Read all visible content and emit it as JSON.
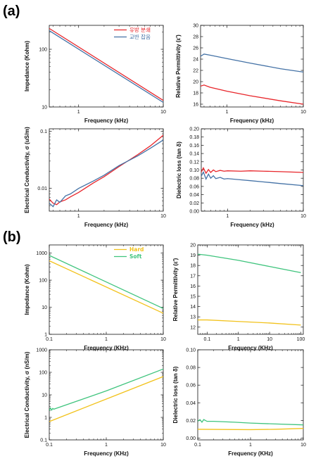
{
  "panel_labels": [
    "(a)",
    "(b)"
  ],
  "chart_data": [
    {
      "type": "line",
      "panel": "(a)",
      "xlabel": "Frequency (kHz)",
      "ylabel": "Impedance (Kohm)",
      "xscale": "log",
      "yscale": "log",
      "xlim": [
        0.45,
        10
      ],
      "ylim": [
        10,
        260
      ],
      "xticks": [
        {
          "v": 1,
          "t": "1"
        },
        {
          "v": 10,
          "t": "10"
        }
      ],
      "yticks": [
        {
          "v": 10,
          "t": "10"
        },
        {
          "v": 100,
          "t": "100"
        }
      ],
      "legend": "top-right",
      "series": [
        {
          "name": "유방 분쇄",
          "color": "#e8262b",
          "x": [
            0.45,
            10
          ],
          "y": [
            230,
            13
          ]
        },
        {
          "name": "교반 잡음",
          "color": "#4472a6",
          "x": [
            0.45,
            10
          ],
          "y": [
            210,
            12
          ]
        }
      ]
    },
    {
      "type": "line",
      "panel": "(a)",
      "xlabel": "Frequency (kHz)",
      "ylabel": "Relative Permittivity (ε')",
      "xscale": "log",
      "yscale": "linear",
      "xlim": [
        0.45,
        10
      ],
      "ylim": [
        15.5,
        30
      ],
      "xticks": [
        {
          "v": 1,
          "t": "1"
        },
        {
          "v": 10,
          "t": "10"
        }
      ],
      "yticks": [
        {
          "v": 16,
          "t": "16"
        },
        {
          "v": 18,
          "t": "18"
        },
        {
          "v": 20,
          "t": "20"
        },
        {
          "v": 22,
          "t": "22"
        },
        {
          "v": 24,
          "t": "24"
        },
        {
          "v": 26,
          "t": "26"
        },
        {
          "v": 28,
          "t": "28"
        },
        {
          "v": 30,
          "t": "30"
        }
      ],
      "series": [
        {
          "color": "#4472a6",
          "x": [
            0.45,
            0.5,
            0.6,
            1,
            2,
            5,
            10
          ],
          "y": [
            24.5,
            24.9,
            24.7,
            24.1,
            23.3,
            22.3,
            21.7
          ]
        },
        {
          "color": "#e8262b",
          "x": [
            0.45,
            0.5,
            0.6,
            1,
            2,
            5,
            10
          ],
          "y": [
            19.2,
            19.4,
            19.0,
            18.3,
            17.5,
            16.6,
            16.0
          ]
        }
      ]
    },
    {
      "type": "line",
      "panel": "(a)",
      "xlabel": "Frequency (kHz)",
      "ylabel": "Electrical Conductivity, σ (uS/m)",
      "xscale": "log",
      "yscale": "log",
      "xlim": [
        0.45,
        10
      ],
      "ylim": [
        0.004,
        0.11
      ],
      "xticks": [
        {
          "v": 1,
          "t": "1"
        },
        {
          "v": 10,
          "t": "10"
        }
      ],
      "yticks": [
        {
          "v": 0.01,
          "t": "0.01"
        },
        {
          "v": 0.1,
          "t": "0.1"
        }
      ],
      "series": [
        {
          "color": "#e8262b",
          "x": [
            0.45,
            0.5,
            0.55,
            0.6,
            0.7,
            0.8,
            1,
            1.5,
            2,
            3,
            5,
            7,
            10
          ],
          "y": [
            0.0065,
            0.0055,
            0.0052,
            0.0058,
            0.0063,
            0.0071,
            0.0085,
            0.0125,
            0.016,
            0.024,
            0.039,
            0.055,
            0.085
          ]
        },
        {
          "color": "#4472a6",
          "x": [
            0.45,
            0.5,
            0.55,
            0.6,
            0.7,
            0.8,
            1,
            1.5,
            2,
            3,
            5,
            7,
            10
          ],
          "y": [
            0.0055,
            0.0048,
            0.0063,
            0.0057,
            0.0074,
            0.008,
            0.01,
            0.0135,
            0.017,
            0.025,
            0.037,
            0.05,
            0.07
          ]
        }
      ]
    },
    {
      "type": "line",
      "panel": "(a)",
      "xlabel": "Frequency (kHz)",
      "ylabel": "Dielectric loss (tan δ)",
      "xscale": "log",
      "yscale": "linear",
      "xlim": [
        0.45,
        10
      ],
      "ylim": [
        0,
        0.2
      ],
      "xticks": [
        {
          "v": 1,
          "t": "1"
        },
        {
          "v": 10,
          "t": "10"
        }
      ],
      "yticks": [
        {
          "v": 0,
          "t": "0.00"
        },
        {
          "v": 0.02,
          "t": "0.02"
        },
        {
          "v": 0.04,
          "t": "0.04"
        },
        {
          "v": 0.06,
          "t": "0.06"
        },
        {
          "v": 0.08,
          "t": "0.08"
        },
        {
          "v": 0.1,
          "t": "0.10"
        },
        {
          "v": 0.12,
          "t": "0.12"
        },
        {
          "v": 0.14,
          "t": "0.14"
        },
        {
          "v": 0.16,
          "t": "0.16"
        },
        {
          "v": 0.18,
          "t": "0.18"
        },
        {
          "v": 0.2,
          "t": "0.20"
        }
      ],
      "series": [
        {
          "color": "#e8262b",
          "x": [
            0.45,
            0.48,
            0.52,
            0.56,
            0.6,
            0.65,
            0.7,
            0.8,
            0.9,
            1,
            1.5,
            2,
            3,
            5,
            10
          ],
          "y": [
            0.095,
            0.105,
            0.092,
            0.101,
            0.094,
            0.1,
            0.096,
            0.099,
            0.097,
            0.098,
            0.097,
            0.098,
            0.097,
            0.096,
            0.094
          ]
        },
        {
          "color": "#4472a6",
          "x": [
            0.45,
            0.48,
            0.52,
            0.56,
            0.6,
            0.65,
            0.7,
            0.8,
            0.9,
            1,
            1.5,
            2,
            3,
            5,
            10
          ],
          "y": [
            0.085,
            0.095,
            0.078,
            0.09,
            0.08,
            0.086,
            0.079,
            0.082,
            0.078,
            0.079,
            0.076,
            0.074,
            0.071,
            0.067,
            0.062
          ]
        }
      ]
    },
    {
      "type": "line",
      "panel": "(b)",
      "xlabel": "Frequency (KHz)",
      "ylabel": "Impedance (Kohm)",
      "xscale": "log",
      "yscale": "log",
      "xlim": [
        0.1,
        10
      ],
      "ylim": [
        1,
        2000
      ],
      "xticks": [
        {
          "v": 0.1,
          "t": "0.1"
        },
        {
          "v": 1,
          "t": "1"
        },
        {
          "v": 10,
          "t": "10"
        }
      ],
      "yticks": [
        {
          "v": 1,
          "t": "1"
        },
        {
          "v": 10,
          "t": "10"
        },
        {
          "v": 100,
          "t": "100"
        },
        {
          "v": 1000,
          "t": "1000"
        }
      ],
      "legend": "top-right",
      "series": [
        {
          "name": "Hard",
          "color": "#f2c21b",
          "x": [
            0.1,
            10
          ],
          "y": [
            520,
            6
          ]
        },
        {
          "name": "Soft",
          "color": "#3fc47d",
          "x": [
            0.1,
            10
          ],
          "y": [
            820,
            9
          ]
        }
      ]
    },
    {
      "type": "line",
      "panel": "(b)",
      "xlabel": "Frequency (KHz)",
      "ylabel": "Relative Permittivity (ε')",
      "xscale": "log",
      "yscale": "linear",
      "xlim": [
        0.05,
        120
      ],
      "ylim": [
        11.3,
        20
      ],
      "xticks": [
        {
          "v": 0.1,
          "t": "0.1"
        },
        {
          "v": 1,
          "t": "1"
        },
        {
          "v": 10,
          "t": "10"
        },
        {
          "v": 100,
          "t": "100"
        }
      ],
      "yticks": [
        {
          "v": 12,
          "t": "12"
        },
        {
          "v": 13,
          "t": "13"
        },
        {
          "v": 14,
          "t": "14"
        },
        {
          "v": 15,
          "t": "15"
        },
        {
          "v": 16,
          "t": "16"
        },
        {
          "v": 17,
          "t": "17"
        },
        {
          "v": 18,
          "t": "18"
        },
        {
          "v": 19,
          "t": "19"
        },
        {
          "v": 20,
          "t": "20"
        }
      ],
      "series": [
        {
          "color": "#3fc47d",
          "x": [
            0.05,
            0.1,
            1,
            10,
            100
          ],
          "y": [
            19.1,
            19.0,
            18.5,
            17.9,
            17.3
          ]
        },
        {
          "color": "#f2c21b",
          "x": [
            0.05,
            0.1,
            1,
            10,
            100
          ],
          "y": [
            12.7,
            12.7,
            12.55,
            12.4,
            12.2
          ]
        }
      ]
    },
    {
      "type": "line",
      "panel": "(b)",
      "xlabel": "Frequency (KHz)",
      "ylabel": "Electrical Conductivity, σ (nS/m)",
      "xscale": "log",
      "yscale": "log",
      "xlim": [
        0.1,
        10
      ],
      "ylim": [
        0.1,
        1000
      ],
      "xticks": [
        {
          "v": 0.1,
          "t": "0.1"
        },
        {
          "v": 1,
          "t": "1"
        },
        {
          "v": 10,
          "t": "10"
        }
      ],
      "yticks": [
        {
          "v": 0.1,
          "t": "0.1"
        },
        {
          "v": 1,
          "t": "1"
        },
        {
          "v": 10,
          "t": "10"
        },
        {
          "v": 100,
          "t": "100"
        },
        {
          "v": 1000,
          "t": "1000"
        }
      ],
      "series": [
        {
          "color": "#3fc47d",
          "x": [
            0.1,
            0.105,
            0.11,
            0.115,
            0.12,
            1,
            10
          ],
          "y": [
            2.0,
            2.6,
            2.1,
            2.5,
            2.3,
            15,
            140
          ]
        },
        {
          "color": "#f2c21b",
          "x": [
            0.1,
            1,
            10
          ],
          "y": [
            0.65,
            6.5,
            65
          ]
        }
      ]
    },
    {
      "type": "line",
      "panel": "(b)",
      "xlabel": "Frequency (KHz)",
      "ylabel": "Dielectric loss (tan δ)",
      "xscale": "log",
      "yscale": "linear",
      "xlim": [
        0.1,
        10
      ],
      "ylim": [
        -0.002,
        0.1
      ],
      "xticks": [
        {
          "v": 0.1,
          "t": "0.1"
        },
        {
          "v": 1,
          "t": "1"
        },
        {
          "v": 10,
          "t": "10"
        }
      ],
      "yticks": [
        {
          "v": 0,
          "t": "0.00"
        },
        {
          "v": 0.02,
          "t": "0.02"
        },
        {
          "v": 0.04,
          "t": "0.04"
        },
        {
          "v": 0.06,
          "t": "0.06"
        },
        {
          "v": 0.08,
          "t": "0.08"
        },
        {
          "v": 0.1,
          "t": "0.10"
        }
      ],
      "series": [
        {
          "color": "#3fc47d",
          "x": [
            0.1,
            0.11,
            0.12,
            0.13,
            0.15,
            0.2,
            0.5,
            1,
            3,
            10
          ],
          "y": [
            0.019,
            0.021,
            0.018,
            0.021,
            0.019,
            0.019,
            0.018,
            0.017,
            0.016,
            0.015
          ]
        },
        {
          "color": "#f2c21b",
          "x": [
            0.1,
            0.3,
            1,
            3,
            10
          ],
          "y": [
            0.01,
            0.0098,
            0.0096,
            0.01,
            0.011
          ]
        }
      ]
    }
  ]
}
